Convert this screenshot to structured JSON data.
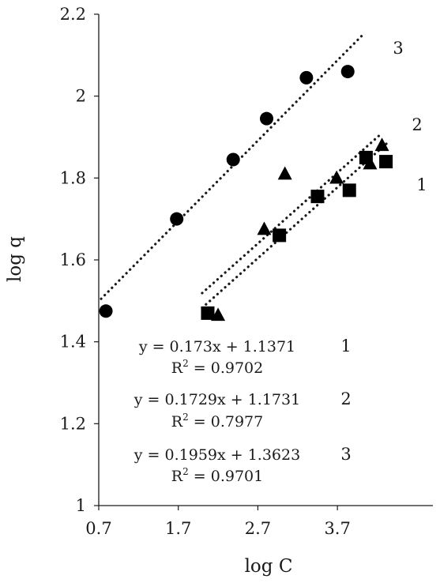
{
  "chart_data": {
    "type": "scatter",
    "xlabel": "log C",
    "ylabel": "log q",
    "xlim": [
      0.7,
      4.9
    ],
    "ylim": [
      1,
      2.2
    ],
    "x_ticks": [
      "0.7",
      "1.7",
      "2.7",
      "3.7"
    ],
    "x_tick_values": [
      0.7,
      1.7,
      2.7,
      3.7
    ],
    "y_ticks": [
      "1",
      "1.2",
      "1.4",
      "1.6",
      "1.8",
      "2",
      "2.2"
    ],
    "y_tick_values": [
      1,
      1.2,
      1.4,
      1.6,
      1.8,
      2,
      2.2
    ],
    "grid": false,
    "series": [
      {
        "label": "1",
        "marker": "square",
        "x": [
          2.07,
          2.97,
          3.45,
          3.85,
          4.06,
          4.31
        ],
        "y": [
          1.47,
          1.66,
          1.755,
          1.77,
          1.85,
          1.84
        ],
        "trend_x": [
          2.0,
          4.34
        ],
        "trend_y": [
          1.483,
          1.888
        ]
      },
      {
        "label": "2",
        "marker": "triangle",
        "x": [
          2.2,
          2.78,
          3.04,
          3.69,
          4.11,
          4.26
        ],
        "y": [
          1.465,
          1.675,
          1.81,
          1.8,
          1.835,
          1.88
        ],
        "trend_x": [
          2.0,
          4.25
        ],
        "trend_y": [
          1.519,
          1.908
        ]
      },
      {
        "label": "3",
        "marker": "circle",
        "x": [
          0.79,
          1.68,
          2.39,
          2.81,
          3.31,
          3.83
        ],
        "y": [
          1.475,
          1.7,
          1.845,
          1.945,
          2.045,
          2.06
        ],
        "trend_x": [
          0.73,
          4.02
        ],
        "trend_y": [
          1.505,
          2.15
        ]
      }
    ],
    "equations": [
      {
        "series": "1",
        "equation": "y = 0.173x + 1.1371",
        "r2_label": "R",
        "r2_sup": "2",
        "r2_value": " = 0.9702"
      },
      {
        "series": "2",
        "equation": "y = 0.1729x + 1.1731",
        "r2_label": "R",
        "r2_sup": "2",
        "r2_value": " = 0.7977"
      },
      {
        "series": "3",
        "equation": "y = 0.1959x + 1.3623",
        "r2_label": "R",
        "r2_sup": "2",
        "r2_value": " = 0.9701"
      }
    ]
  }
}
